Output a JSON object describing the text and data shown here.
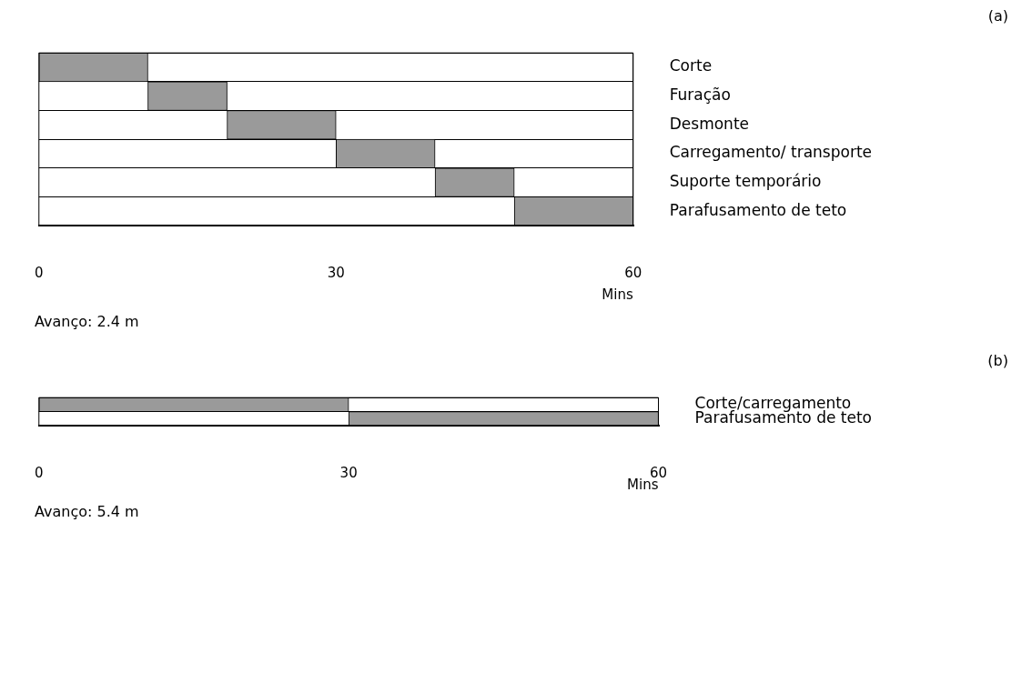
{
  "chart_data": [
    {
      "type": "bar",
      "orientation": "horizontal",
      "categories": [
        "Corte",
        "Furação",
        "Desmonte",
        "Carregamento/ transporte",
        "Suporte temporário",
        "Parafusamento de teto"
      ],
      "series": [
        {
          "color": "#9a9a9a",
          "base": [
            0,
            11,
            19,
            30,
            40,
            48
          ],
          "values": [
            11,
            8,
            11,
            10,
            8,
            12
          ]
        }
      ],
      "xlim": [
        0,
        60
      ],
      "xticks": [
        0,
        30,
        60
      ],
      "xlabel": "Mins",
      "grid": "y",
      "legend": false,
      "annotations": [
        "(a)",
        "Avanço: 2.4 m"
      ]
    },
    {
      "type": "bar",
      "orientation": "horizontal",
      "categories": [
        "Corte/carregamento",
        "Parafusamento de teto"
      ],
      "series": [
        {
          "color": "#9a9a9a",
          "base": [
            0,
            30
          ],
          "values": [
            30,
            30
          ]
        }
      ],
      "xlim": [
        0,
        60
      ],
      "xticks": [
        0,
        30,
        60
      ],
      "xlabel": "Mins",
      "grid": "y",
      "legend": false,
      "annotations": [
        "(b)",
        "Avanço: 5.4 m"
      ]
    }
  ]
}
